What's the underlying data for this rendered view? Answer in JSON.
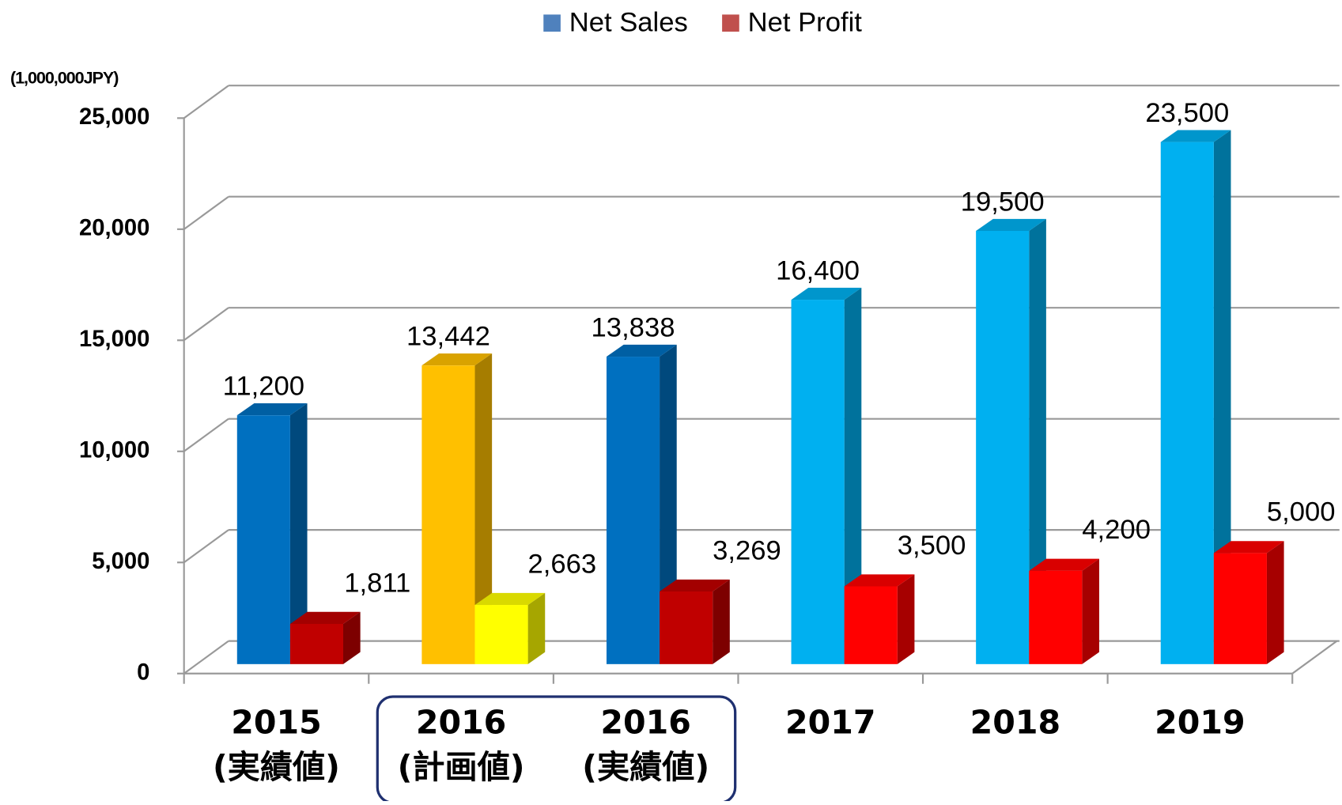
{
  "chart_data": {
    "type": "bar3d",
    "y_axis_label": "(1,000,000JPY)",
    "categories": [
      "2015\n(実績値)",
      "2016\n(計画値)",
      "2016\n(実績値)",
      "2017",
      "2018",
      "2019"
    ],
    "series": [
      {
        "name": "Net Sales",
        "color": "#4f81bd",
        "point_colors": [
          "#0070c0",
          "#ffc000",
          "#0070c0",
          "#00b0f0",
          "#00b0f0",
          "#00b0f0"
        ],
        "values": [
          11200,
          13442,
          13838,
          16400,
          19500,
          23500
        ],
        "value_labels": [
          "11,200",
          "13,442",
          "13,838",
          "16,400",
          "19,500",
          "23,500"
        ]
      },
      {
        "name": "Net Profit",
        "color": "#c0504d",
        "point_colors": [
          "#c00000",
          "#ffff00",
          "#c00000",
          "#ff0000",
          "#ff0000",
          "#ff0000"
        ],
        "values": [
          1811,
          2663,
          3269,
          3500,
          4200,
          5000
        ],
        "value_labels": [
          "1,811",
          "2,663",
          "3,269",
          "3,500",
          "4,200",
          "5,000"
        ]
      }
    ],
    "ylim": [
      0,
      25000
    ],
    "yticks": [
      0,
      {
        "value": 5000,
        "label": "5,000"
      },
      {
        "value": 10000,
        "label": "10,000"
      },
      {
        "value": 15000,
        "label": "15,000"
      },
      {
        "value": 20000,
        "label": "20,000"
      },
      {
        "value": 25000,
        "label": "25,000"
      }
    ],
    "grid": true,
    "legend": "top"
  }
}
